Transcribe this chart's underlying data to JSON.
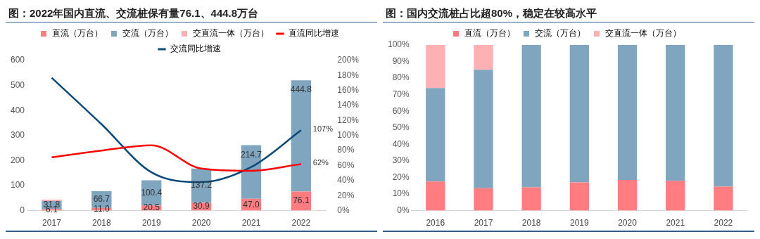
{
  "chart_data": [
    {
      "type": "bar",
      "title": "图：2022年国内直流、交流桩保有量76.1、444.8万台",
      "categories": [
        "2017",
        "2018",
        "2019",
        "2020",
        "2021",
        "2022"
      ],
      "stacked": true,
      "legend": "top",
      "ylim": [
        0,
        600
      ],
      "yticks": [
        0,
        100,
        200,
        300,
        400,
        500,
        600
      ],
      "y2lim": [
        0,
        200
      ],
      "y2ticks": [
        {
          "value": 0,
          "label": "0%"
        },
        {
          "value": 20,
          "label": "20%"
        },
        {
          "value": 40,
          "label": "40%"
        },
        {
          "value": 60,
          "label": "60%"
        },
        {
          "value": 80,
          "label": "80%"
        },
        {
          "value": 100,
          "label": "100%"
        },
        {
          "value": 120,
          "label": "120%"
        },
        {
          "value": 140,
          "label": "140%"
        },
        {
          "value": 160,
          "label": "160%"
        },
        {
          "value": 180,
          "label": "180%"
        },
        {
          "value": 200,
          "label": "200%"
        }
      ],
      "series": [
        {
          "name": "直流（万台）",
          "color": "#ff7c80",
          "values": [
            6.1,
            11.0,
            20.5,
            30.9,
            47.0,
            76.1
          ],
          "value_labels": [
            "6.1",
            "11.0",
            "20.5",
            "30.9",
            "47.0",
            "76.1"
          ]
        },
        {
          "name": "交流（万台）",
          "color": "#7fa5bf",
          "values": [
            31.8,
            66.7,
            100.4,
            137.2,
            214.7,
            444.8
          ],
          "value_labels": [
            "31.8",
            "66.7",
            "100.4",
            "137.2",
            "214.7",
            "444.8"
          ]
        },
        {
          "name": "交直流一体（万台）",
          "color": "#ffb0b2",
          "values": [
            6,
            0,
            0,
            0,
            0,
            0
          ]
        },
        {
          "name": "直流同比增速",
          "type": "line",
          "axis": "y2",
          "color": "#ff0000",
          "values": [
            71,
            80,
            87,
            56,
            53,
            62
          ],
          "value_labels": [
            null,
            null,
            null,
            null,
            null,
            "62%"
          ]
        },
        {
          "name": "交流同比增速",
          "type": "line",
          "axis": "y2",
          "color": "#0b4a78",
          "values": [
            177,
            115,
            51,
            38,
            58,
            107
          ],
          "value_labels": [
            null,
            null,
            null,
            null,
            null,
            "107%"
          ]
        }
      ]
    },
    {
      "type": "bar",
      "title": "图：国内交流桩占比超80%，稳定在较高水平",
      "categories": [
        "2016",
        "2017",
        "2018",
        "2019",
        "2020",
        "2021",
        "2022"
      ],
      "stacked": true,
      "legend": "top",
      "ylim": [
        0,
        100
      ],
      "yticks": [
        {
          "value": 0,
          "label": "0%"
        },
        {
          "value": 10,
          "label": "10%"
        },
        {
          "value": 20,
          "label": "20%"
        },
        {
          "value": 30,
          "label": "30%"
        },
        {
          "value": 40,
          "label": "40%"
        },
        {
          "value": 50,
          "label": "50%"
        },
        {
          "value": 60,
          "label": "60%"
        },
        {
          "value": 70,
          "label": "70%"
        },
        {
          "value": 80,
          "label": "80%"
        },
        {
          "value": 90,
          "label": "90%"
        },
        {
          "value": 100,
          "label": "100%"
        }
      ],
      "series": [
        {
          "name": "直流（万台）",
          "color": "#ff7c80",
          "values": [
            17.5,
            13.5,
            14,
            17,
            18.5,
            18,
            14.5
          ]
        },
        {
          "name": "交流（万台）",
          "color": "#7fa5bf",
          "values": [
            56.5,
            71.5,
            86,
            83,
            81.5,
            82,
            85.5
          ]
        },
        {
          "name": "交直流一体（万台）",
          "color": "#ffb0b2",
          "values": [
            26,
            15,
            0,
            0,
            0,
            0,
            0
          ]
        }
      ]
    }
  ]
}
